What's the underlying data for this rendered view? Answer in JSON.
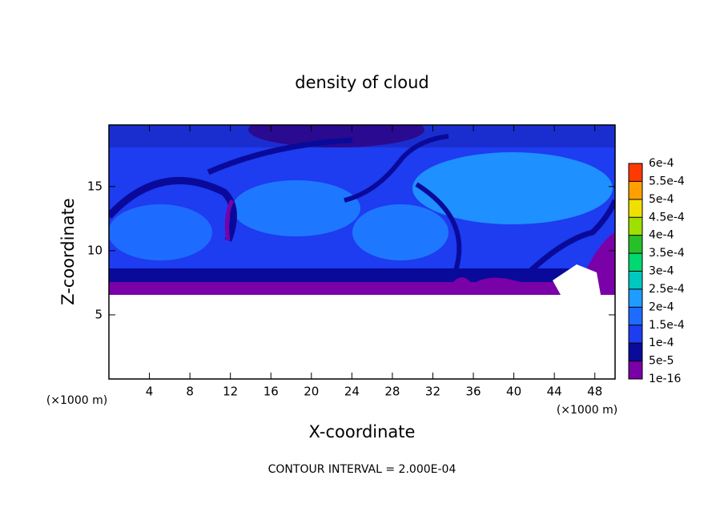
{
  "chart_data": {
    "type": "contour",
    "title": "density of cloud",
    "x_label": "X-coordinate",
    "y_label": "Z-coordinate",
    "x_unit_label": "(×1000 m)",
    "footnote": "CONTOUR INTERVAL = 2.000E-04",
    "xlim": [
      0,
      50
    ],
    "ylim": [
      0,
      19.8
    ],
    "xticks": [
      4,
      8,
      12,
      16,
      20,
      24,
      28,
      32,
      36,
      40,
      44,
      48
    ],
    "yticks": [
      5,
      10,
      15
    ],
    "colorbar_ticks": [
      {
        "value": 1e-16,
        "label": "1e-16"
      },
      {
        "value": 5e-05,
        "label": "5e-5"
      },
      {
        "value": 0.0001,
        "label": "1e-4"
      },
      {
        "value": 0.00015,
        "label": "1.5e-4"
      },
      {
        "value": 0.0002,
        "label": "2e-4"
      },
      {
        "value": 0.00025,
        "label": "2.5e-4"
      },
      {
        "value": 0.0003,
        "label": "3e-4"
      },
      {
        "value": 0.00035,
        "label": "3.5e-4"
      },
      {
        "value": 0.0004,
        "label": "4e-4"
      },
      {
        "value": 0.00045,
        "label": "4.5e-4"
      },
      {
        "value": 0.0005,
        "label": "5e-4"
      },
      {
        "value": 0.00055,
        "label": "5.5e-4"
      },
      {
        "value": 0.0006,
        "label": "6e-4"
      }
    ],
    "colorbar_colors": [
      "#7a00a8",
      "#0a0a9a",
      "#1e3cf0",
      "#1e6cff",
      "#1e9cff",
      "#00c8c0",
      "#00d870",
      "#28c028",
      "#a0e000",
      "#f0e000",
      "#ffa000",
      "#ff3a00",
      "#ff8c8c"
    ]
  }
}
